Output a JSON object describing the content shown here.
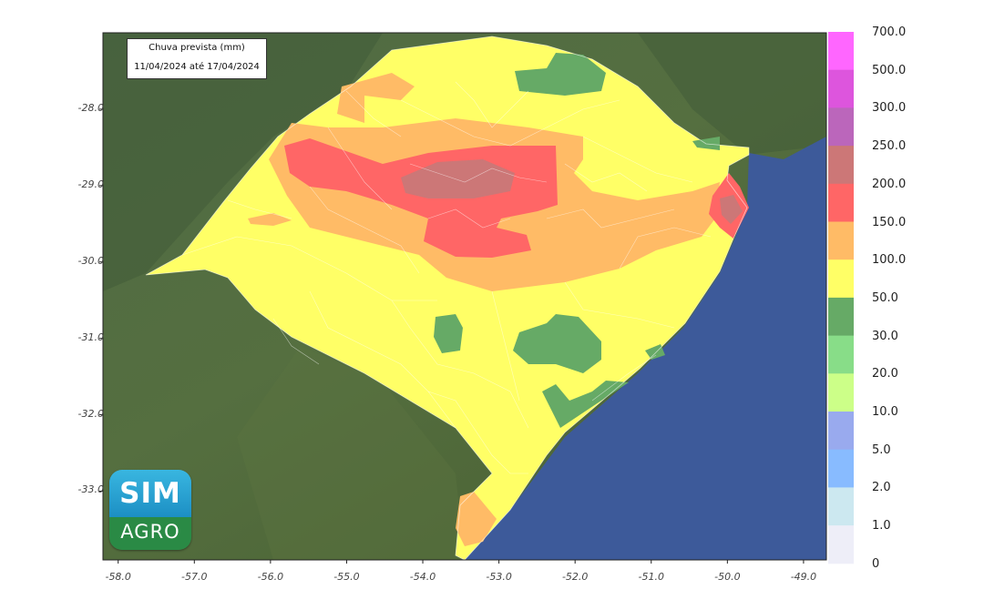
{
  "map": {
    "title_line1": "Chuva prevista (mm)",
    "title_line2": "11/04/2024 até 17/04/2024",
    "lat_ticks": [
      "-28.0",
      "-29.0",
      "-30.0",
      "-31.0",
      "-32.0",
      "-33.0"
    ],
    "lon_ticks": [
      "-58.0",
      "-57.0",
      "-56.0",
      "-55.0",
      "-54.0",
      "-53.0",
      "-52.0",
      "-51.0",
      "-50.0",
      "-49.0"
    ],
    "lon_range": [
      -58.2,
      -48.7
    ],
    "lat_range": [
      -33.9,
      -27.0
    ],
    "colorbar": [
      {
        "label": "700.0",
        "color": "#ff66ff"
      },
      {
        "label": "500.0",
        "color": "#dd55dd"
      },
      {
        "label": "300.0",
        "color": "#bb66bb"
      },
      {
        "label": "250.0",
        "color": "#cc7777"
      },
      {
        "label": "200.0",
        "color": "#ff6666"
      },
      {
        "label": "150.0",
        "color": "#ffbb66"
      },
      {
        "label": "100.0",
        "color": "#ffff66"
      },
      {
        "label": "50.0",
        "color": "#66aa66"
      },
      {
        "label": "30.0",
        "color": "#88dd88"
      },
      {
        "label": "20.0",
        "color": "#ccff88"
      },
      {
        "label": "10.0",
        "color": "#99aaee"
      },
      {
        "label": "5.0",
        "color": "#88bbff"
      },
      {
        "label": "2.0",
        "color": "#cce8f0"
      },
      {
        "label": "1.0",
        "color": "#eeeef8"
      },
      {
        "label": "0",
        "color": ""
      }
    ],
    "colors": {
      "land": "#4a6a3c",
      "ocean": "#3d5a9a",
      "rain_50_100": "#ffff66",
      "rain_100_150": "#ffbb66",
      "rain_150_200": "#ff6666",
      "rain_200_250": "#cc7777",
      "rain_30_50": "#66aa66"
    }
  },
  "logo": {
    "line1": "SIM",
    "line2": "AGRO"
  }
}
